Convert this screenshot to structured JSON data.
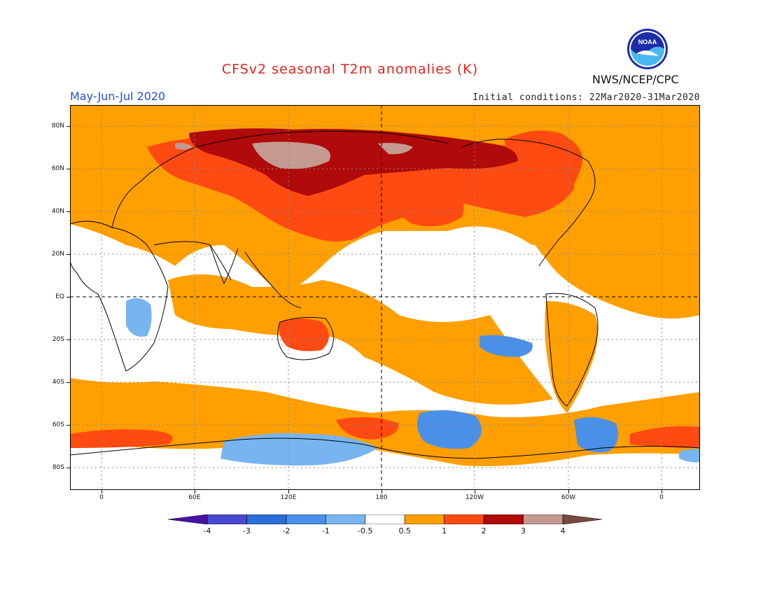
{
  "header": {
    "title": "CFSv2 seasonal T2m anomalies (K)",
    "season": "May-Jun-Jul 2020",
    "initial_conditions": "Initial conditions: 22Mar2020-31Mar2020",
    "agency": "NWS/NCEP/CPC",
    "logo_text": "NOAA"
  },
  "axes": {
    "lat_ticks": [
      "80N",
      "60N",
      "40N",
      "20N",
      "EQ",
      "20S",
      "40S",
      "60S",
      "80S"
    ],
    "lon_ticks": [
      "0",
      "60E",
      "120E",
      "180",
      "120W",
      "60W",
      "0"
    ]
  },
  "legend": {
    "labels": [
      "-4",
      "-3",
      "-2",
      "-1",
      "-0.5",
      "0.5",
      "1",
      "2",
      "3",
      "4"
    ],
    "colors": [
      "#4a10a8",
      "#4848d0",
      "#2a6ed8",
      "#4a90e8",
      "#78b4f0",
      "#ffffff",
      "#ff9f00",
      "#ff4a12",
      "#b00a0a",
      "#c49a90",
      "#7a4a40"
    ]
  }
}
